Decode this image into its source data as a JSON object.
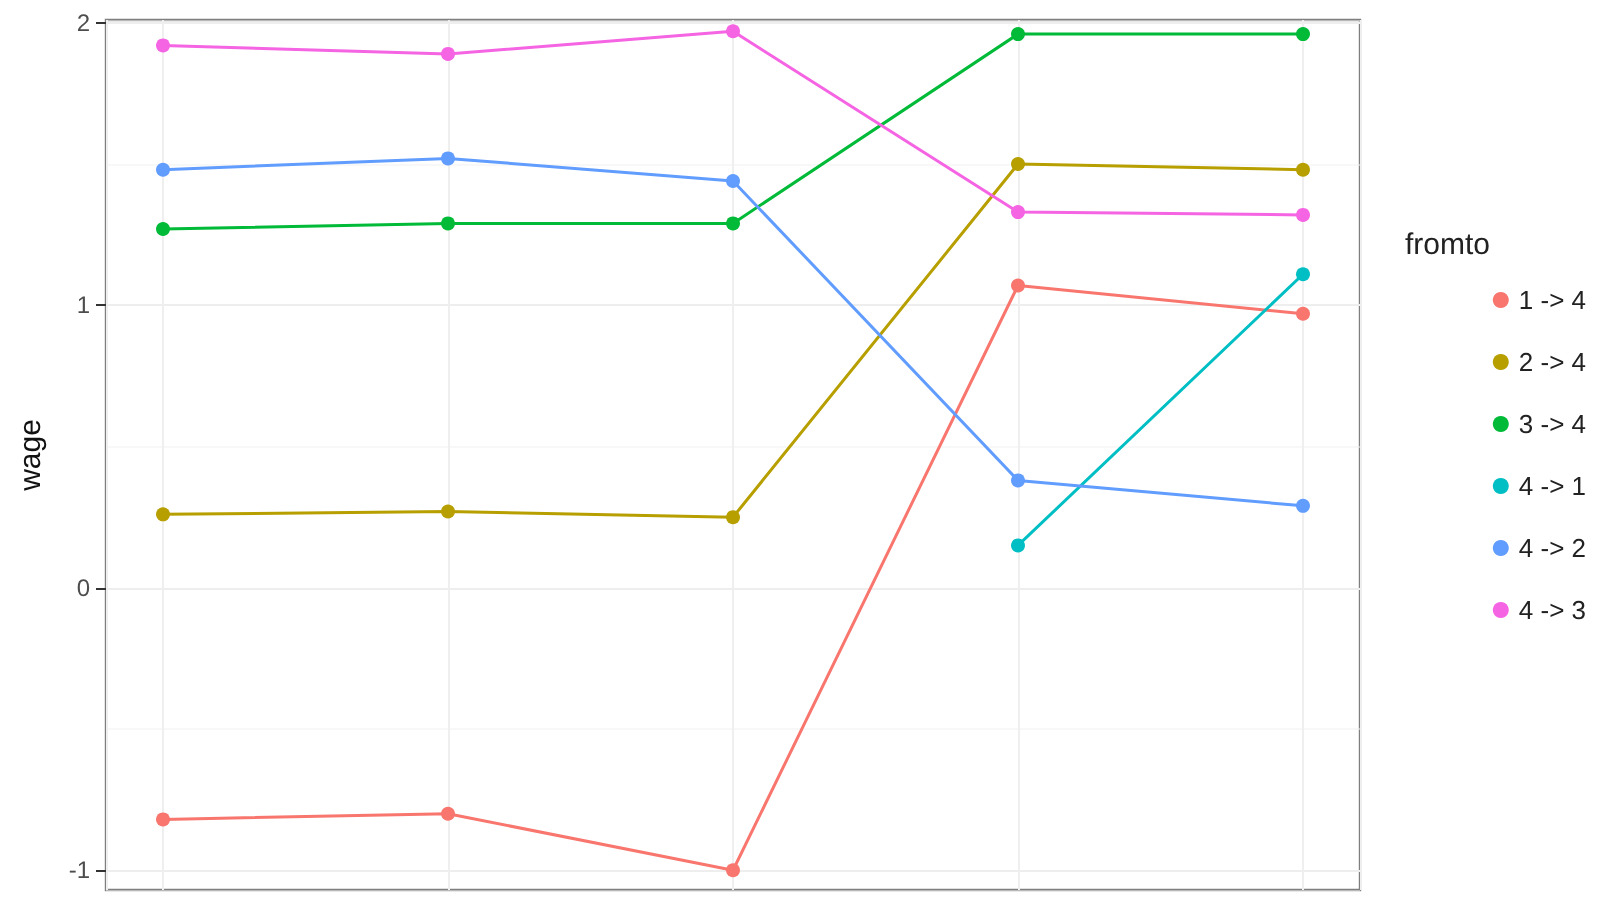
{
  "chart_data": {
    "type": "line",
    "ylabel": "wage",
    "legend_title": "fromto",
    "categories": [
      null,
      null,
      null,
      null,
      null
    ],
    "ylim": [
      -1.07,
      2.01
    ],
    "yticks": [
      -1,
      0,
      1,
      2
    ],
    "grid": true,
    "legend": "right",
    "marker": "circle",
    "line_style": "solid",
    "series": [
      {
        "name": "1 -> 4",
        "color": "#f8766d",
        "values": [
          -0.82,
          -0.8,
          -1.0,
          1.07,
          0.97
        ]
      },
      {
        "name": "2 -> 4",
        "color": "#b79f00",
        "values": [
          0.26,
          0.27,
          0.25,
          1.5,
          1.48
        ]
      },
      {
        "name": "3 -> 4",
        "color": "#00ba38",
        "values": [
          1.27,
          1.29,
          1.29,
          1.96,
          1.96
        ]
      },
      {
        "name": "4 -> 1",
        "color": "#00bfc4",
        "values": [
          null,
          null,
          null,
          0.15,
          1.11
        ]
      },
      {
        "name": "4 -> 2",
        "color": "#619cff",
        "values": [
          1.48,
          1.52,
          1.44,
          0.38,
          0.29
        ]
      },
      {
        "name": "4 -> 3",
        "color": "#f564e3",
        "values": [
          1.92,
          1.89,
          1.97,
          1.33,
          1.32
        ]
      }
    ]
  }
}
